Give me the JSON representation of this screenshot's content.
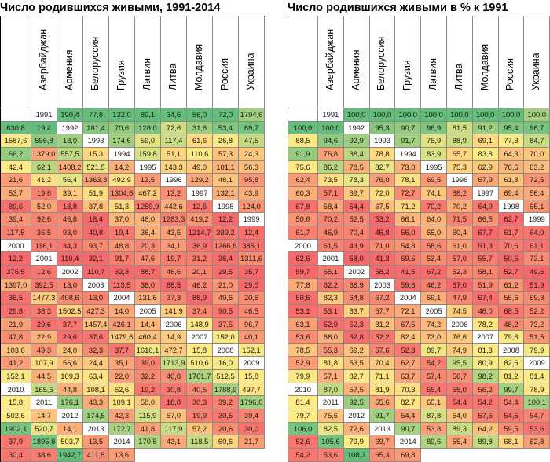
{
  "left": {
    "title": "Число родившихся живыми, 1991-2014",
    "countries": [
      "Азербайджан",
      "Армения",
      "Белоруссия",
      "Грузия",
      "Латвия",
      "Литва",
      "Молдавия",
      "Россия",
      "Украина",
      "Эстония"
    ],
    "rows": [
      [
        "1991",
        "190,4",
        "77,8",
        "132,0",
        "89,1",
        "34,6",
        "56,0",
        "72,0",
        "1794,6",
        "630,8",
        "19,4"
      ],
      [
        "1992",
        "181,4",
        "70,6",
        "128,0",
        "72,6",
        "31,6",
        "53,4",
        "69,7",
        "1587,6",
        "596,8",
        "18,0"
      ],
      [
        "1993",
        "174,6",
        "59,0",
        "117,4",
        "61,6",
        "26,8",
        "47,5",
        "66,2",
        "1379,0",
        "557,5",
        "15,3"
      ],
      [
        "1994",
        "159,8",
        "51,1",
        "110,6",
        "57,3",
        "24,3",
        "42,4",
        "62,1",
        "1408,2",
        "521,5",
        "14,2"
      ],
      [
        "1995",
        "143,3",
        "49,0",
        "101,1",
        "56,3",
        "21,6",
        "41,2",
        "56,4",
        "1363,8",
        "492,9",
        "13,5"
      ],
      [
        "1996",
        "129,2",
        "48,1",
        "95,8",
        "53,7",
        "19,8",
        "39,1",
        "51,9",
        "1304,6",
        "467,2",
        "13,2"
      ],
      [
        "1997",
        "132,1",
        "43,9",
        "89,6",
        "52,0",
        "18,8",
        "37,8",
        "51,3",
        "1259,9",
        "442,6",
        "12,6"
      ],
      [
        "1998",
        "124,0",
        "39,4",
        "92,6",
        "46,8",
        "18,4",
        "37,0",
        "46,0",
        "1283,3",
        "419,2",
        "12,2"
      ],
      [
        "1999",
        "117,5",
        "36,5",
        "93,0",
        "40,8",
        "19,4",
        "36,4",
        "43,5",
        "1214,7",
        "389,2",
        "12,4"
      ],
      [
        "2000",
        "116,1",
        "34,3",
        "93,7",
        "48,8",
        "20,3",
        "34,1",
        "36,9",
        "1266,8",
        "385,1",
        "12,2"
      ],
      [
        "2001",
        "110,4",
        "32,1",
        "91,7",
        "47,6",
        "19,7",
        "31,2",
        "36,4",
        "1311,6",
        "376,5",
        "12,6"
      ],
      [
        "2002",
        "110,7",
        "32,3",
        "88,7",
        "46,6",
        "20,1",
        "29,5",
        "35,7",
        "1397,0",
        "392,5",
        "13,0"
      ],
      [
        "2003",
        "113,5",
        "36,0",
        "88,5",
        "46,2",
        "21,0",
        "29,0",
        "36,5",
        "1477,3",
        "408,6",
        "13,0"
      ],
      [
        "2004",
        "131,6",
        "37,3",
        "88,9",
        "49,6",
        "20,6",
        "29,8",
        "38,3",
        "1502,5",
        "427,3",
        "14,0"
      ],
      [
        "2005",
        "141,9",
        "37,4",
        "90,5",
        "46,5",
        "21,9",
        "29,6",
        "37,7",
        "1457,4",
        "426,1",
        "14,4"
      ],
      [
        "2006",
        "148,9",
        "37,5",
        "96,7",
        "47,8",
        "22,9",
        "29,6",
        "37,6",
        "1479,6",
        "460,4",
        "14,9"
      ],
      [
        "2007",
        "152,0",
        "40,1",
        "103,6",
        "49,3",
        "24,0",
        "32,3",
        "37,7",
        "1610,1",
        "472,7",
        "15,8"
      ],
      [
        "2008",
        "152,1",
        "41,2",
        "107,9",
        "56,6",
        "24,4",
        "35,1",
        "39,0",
        "1713,9",
        "510,6",
        "16,0"
      ],
      [
        "2009",
        "152,1",
        "44,5",
        "109,3",
        "63,4",
        "22,0",
        "32,2",
        "40,8",
        "1761,7",
        "512,5",
        "15,8"
      ],
      [
        "2010",
        "165,6",
        "44,8",
        "108,1",
        "62,6",
        "19,2",
        "30,8",
        "40,5",
        "1788,9",
        "497,7",
        "15,8"
      ],
      [
        "2011",
        "176,1",
        "43,3",
        "109,1",
        "58,0",
        "18,8",
        "30,3",
        "39,2",
        "1796,6",
        "502,6",
        "14,7"
      ],
      [
        "2012",
        "174,5",
        "42,3",
        "115,9",
        "57,0",
        "19,9",
        "30,5",
        "39,4",
        "1902,1",
        "520,7",
        "14,1"
      ],
      [
        "2013",
        "172,7",
        "41,8",
        "117,9",
        "57,2",
        "20,6",
        "30,0",
        "37,9",
        "1895,8",
        "503,7",
        "13,5"
      ],
      [
        "2014",
        "170,5",
        "43,1",
        "118,5",
        "60,6",
        "21,7",
        "30,4",
        "38,6",
        "1942,7",
        "411,8",
        "13,6"
      ]
    ]
  },
  "right": {
    "title": "Число родившихся живыми в % к 1991",
    "countries": [
      "Азербайджан",
      "Армения",
      "Белоруссия",
      "Грузия",
      "Латвия",
      "Литва",
      "Молдавия",
      "Россия",
      "Украина",
      "Эстония"
    ],
    "rows": [
      [
        "1991",
        "100,0",
        "100,0",
        "100,0",
        "100,0",
        "100,0",
        "100,0",
        "100,0",
        "100,0",
        "100,0",
        "100,0"
      ],
      [
        "1992",
        "95,3",
        "90,7",
        "96,9",
        "81,5",
        "91,2",
        "95,4",
        "96,7",
        "88,5",
        "94,6",
        "92,9"
      ],
      [
        "1993",
        "91,7",
        "75,9",
        "88,9",
        "69,1",
        "77,3",
        "84,7",
        "91,9",
        "76,8",
        "88,4",
        "78,8"
      ],
      [
        "1994",
        "83,9",
        "65,7",
        "83,8",
        "64,3",
        "70,0",
        "75,6",
        "86,2",
        "78,5",
        "82,7",
        "73,0"
      ],
      [
        "1995",
        "75,3",
        "62,9",
        "76,6",
        "63,2",
        "62,4",
        "73,5",
        "78,3",
        "76,0",
        "78,1",
        "69,5"
      ],
      [
        "1996",
        "67,9",
        "61,8",
        "72,5",
        "60,3",
        "57,1",
        "69,7",
        "72,0",
        "72,7",
        "74,1",
        "68,2"
      ],
      [
        "1997",
        "69,4",
        "56,4",
        "67,8",
        "58,4",
        "54,4",
        "67,5",
        "71,2",
        "70,2",
        "70,2",
        "64,9"
      ],
      [
        "1998",
        "65,1",
        "50,6",
        "70,2",
        "52,5",
        "53,2",
        "66,1",
        "64,0",
        "71,5",
        "66,5",
        "62,7"
      ],
      [
        "1999",
        "61,7",
        "46,9",
        "70,4",
        "45,8",
        "56,0",
        "65,0",
        "60,4",
        "67,7",
        "61,7",
        "64,0"
      ],
      [
        "2000",
        "61,5",
        "43,9",
        "71,0",
        "54,8",
        "58,6",
        "61,0",
        "51,3",
        "70,6",
        "61,1",
        "62,6"
      ],
      [
        "2001",
        "58,0",
        "41,3",
        "69,5",
        "53,4",
        "57,0",
        "55,7",
        "50,6",
        "73,1",
        "59,7",
        "65,1"
      ],
      [
        "2002",
        "58,2",
        "41,5",
        "67,2",
        "52,3",
        "58,1",
        "52,7",
        "49,6",
        "77,8",
        "62,2",
        "66,9"
      ],
      [
        "2003",
        "59,6",
        "46,2",
        "67,0",
        "51,9",
        "61,2",
        "51,9",
        "50,6",
        "82,3",
        "64,8",
        "67,2"
      ],
      [
        "2004",
        "69,1",
        "47,9",
        "67,4",
        "55,6",
        "59,3",
        "53,1",
        "53,1",
        "83,7",
        "67,7",
        "72,1"
      ],
      [
        "2005",
        "74,5",
        "48,0",
        "68,5",
        "52,2",
        "63,1",
        "52,9",
        "52,3",
        "81,2",
        "67,5",
        "74,2"
      ],
      [
        "2006",
        "78,2",
        "48,2",
        "73,2",
        "53,6",
        "66,0",
        "52,8",
        "52,2",
        "82,4",
        "73,0",
        "76,6"
      ],
      [
        "2007",
        "79,8",
        "51,5",
        "78,5",
        "55,3",
        "69,2",
        "57,6",
        "52,3",
        "89,7",
        "74,9",
        "81,3"
      ],
      [
        "2008",
        "79,9",
        "52,9",
        "81,8",
        "63,5",
        "70,4",
        "62,7",
        "54,2",
        "95,5",
        "80,9",
        "82,6"
      ],
      [
        "2009",
        "79,9",
        "57,1",
        "82,7",
        "71,1",
        "63,7",
        "57,4",
        "56,7",
        "98,2",
        "81,2",
        "81,4"
      ],
      [
        "2010",
        "87,0",
        "57,5",
        "81,9",
        "70,3",
        "55,4",
        "55,0",
        "56,2",
        "99,7",
        "78,9",
        "81,4"
      ],
      [
        "2011",
        "92,5",
        "55,6",
        "82,7",
        "65,1",
        "54,4",
        "54,2",
        "54,4",
        "100,1",
        "79,7",
        "75,6"
      ],
      [
        "2012",
        "91,7",
        "54,4",
        "87,8",
        "64,0",
        "57,6",
        "54,5",
        "54,7",
        "106,0",
        "82,5",
        "72,6"
      ],
      [
        "2013",
        "90,7",
        "53,8",
        "89,3",
        "64,2",
        "59,5",
        "53,6",
        "52,6",
        "105,6",
        "79,9",
        "69,7"
      ],
      [
        "2014",
        "89,6",
        "55,4",
        "89,8",
        "68,1",
        "62,8",
        "54,2",
        "53,6",
        "108,3",
        "65,3",
        "69,8"
      ]
    ]
  },
  "colors": {
    "low": "#f8696b",
    "mid": "#ffeb84",
    "high": "#63be7b"
  }
}
